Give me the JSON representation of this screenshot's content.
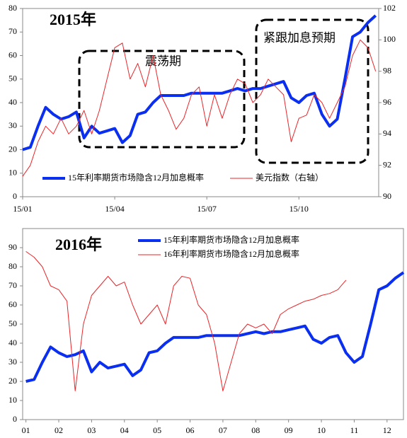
{
  "chart_data": [
    {
      "type": "line",
      "title": "2015年",
      "annotations": [
        "震荡期",
        "紧跟加息预期"
      ],
      "x": [
        0,
        0.25,
        0.5,
        0.75,
        1,
        1.25,
        1.5,
        1.75,
        2,
        2.25,
        2.5,
        2.75,
        3,
        3.25,
        3.5,
        3.75,
        4,
        4.25,
        4.5,
        4.75,
        5,
        5.25,
        5.5,
        5.75,
        6,
        6.25,
        6.5,
        6.75,
        7,
        7.25,
        7.5,
        7.75,
        8,
        8.25,
        8.5,
        8.75,
        9,
        9.25,
        9.5,
        9.75,
        10,
        10.25,
        10.5,
        10.75,
        11,
        11.25,
        11.5
      ],
      "xlim": [
        0,
        11.6
      ],
      "xticks": [
        {
          "value": 0,
          "label": "15/01"
        },
        {
          "value": 3,
          "label": "15/04"
        },
        {
          "value": 6,
          "label": "15/07"
        },
        {
          "value": 9,
          "label": "15/10"
        }
      ],
      "ylim": [
        0,
        80
      ],
      "yticks": [
        0,
        10,
        20,
        30,
        40,
        50,
        60,
        70,
        80
      ],
      "y2lim": [
        90,
        102
      ],
      "y2ticks": [
        90,
        92,
        94,
        96,
        98,
        100,
        102
      ],
      "series": [
        {
          "name": "15年利率期货市场隐含12月加息概率",
          "color": "#0b2ff0",
          "width": 4,
          "values": [
            20,
            21,
            30,
            38,
            35,
            33,
            34,
            36,
            25,
            30,
            27,
            28,
            29,
            23,
            26,
            35,
            36,
            40,
            43,
            43,
            43,
            43,
            44,
            44,
            44,
            44,
            44,
            45,
            46,
            45,
            46,
            46,
            47,
            48,
            49,
            42,
            40,
            43,
            44,
            35,
            30,
            33,
            50,
            68,
            70,
            74,
            77
          ]
        },
        {
          "name": "美元指数（右轴）",
          "color": "#e8262a",
          "width": 1,
          "axis": "y2",
          "values": [
            91.3,
            92,
            93.5,
            94.5,
            94,
            95,
            94,
            94.5,
            95.5,
            94,
            95.5,
            97.5,
            99.5,
            99.8,
            97.5,
            98.5,
            97,
            99,
            96.5,
            95.5,
            94.3,
            95,
            96.5,
            97,
            94.5,
            96.5,
            95,
            96.5,
            97.5,
            97.2,
            96,
            96.5,
            97.5,
            97,
            96.5,
            93.5,
            95,
            95.2,
            96.5,
            96,
            95,
            96,
            97,
            99,
            100,
            99.5,
            98
          ]
        }
      ]
    },
    {
      "type": "line",
      "title": "2016年",
      "x": [
        1,
        1.25,
        1.5,
        1.75,
        2,
        2.25,
        2.5,
        2.75,
        3,
        3.25,
        3.5,
        3.75,
        4,
        4.25,
        4.5,
        4.75,
        5,
        5.25,
        5.5,
        5.75,
        6,
        6.25,
        6.5,
        6.75,
        7,
        7.25,
        7.5,
        7.75,
        8,
        8.25,
        8.5,
        8.75,
        9,
        9.25,
        9.5,
        9.75,
        10,
        10.25,
        10.5,
        10.75,
        11,
        11.25,
        11.5,
        11.75,
        12,
        12.25,
        12.5
      ],
      "xlim": [
        0.9,
        12.5
      ],
      "xticks": [
        {
          "value": 1,
          "label": "01"
        },
        {
          "value": 2,
          "label": "02"
        },
        {
          "value": 3,
          "label": "03"
        },
        {
          "value": 4,
          "label": "04"
        },
        {
          "value": 5,
          "label": "05"
        },
        {
          "value": 6,
          "label": "06"
        },
        {
          "value": 7,
          "label": "07"
        },
        {
          "value": 8,
          "label": "08"
        },
        {
          "value": 9,
          "label": "09"
        },
        {
          "value": 10,
          "label": "10"
        },
        {
          "value": 11,
          "label": "11"
        },
        {
          "value": 12,
          "label": "12"
        }
      ],
      "ylim": [
        0,
        100
      ],
      "yticks": [
        0,
        10,
        20,
        30,
        40,
        50,
        60,
        70,
        80,
        90
      ],
      "series": [
        {
          "name": "15年利率期货市场隐含12月加息概率",
          "color": "#0b2ff0",
          "width": 4,
          "values": [
            20,
            21,
            30,
            38,
            35,
            33,
            34,
            36,
            25,
            30,
            27,
            28,
            29,
            23,
            26,
            35,
            36,
            40,
            43,
            43,
            43,
            43,
            44,
            44,
            44,
            44,
            44,
            45,
            46,
            45,
            46,
            46,
            47,
            48,
            49,
            42,
            40,
            43,
            44,
            35,
            30,
            33,
            50,
            68,
            70,
            74,
            77
          ]
        },
        {
          "name": "16年利率期货市场隐含12月加息概率",
          "color": "#e8262a",
          "width": 1,
          "values": [
            88,
            85,
            80,
            70,
            68,
            62,
            15,
            50,
            65,
            70,
            75,
            70,
            72,
            60,
            50,
            55,
            60,
            50,
            70,
            75,
            74,
            60,
            55,
            40,
            15,
            30,
            45,
            50,
            48,
            50,
            45,
            55,
            58,
            60,
            62,
            63,
            65,
            66,
            68,
            73,
            null,
            null,
            null,
            null,
            null,
            null,
            null
          ]
        }
      ]
    }
  ]
}
